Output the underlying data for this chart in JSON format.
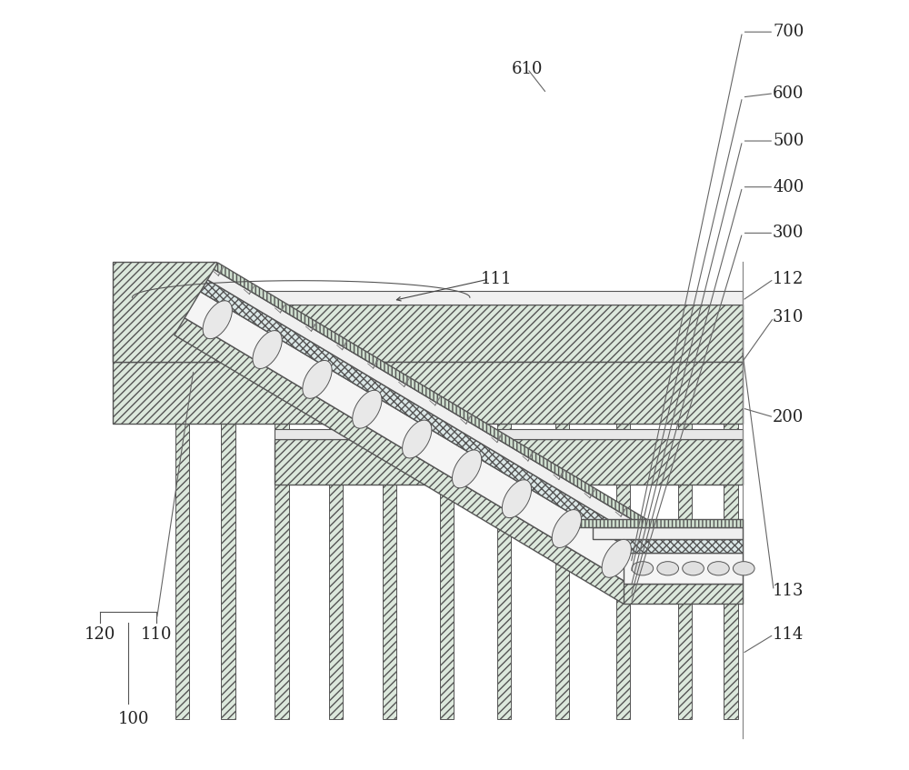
{
  "fig_width": 10.0,
  "fig_height": 8.47,
  "bg_color": "#ffffff",
  "ec": "#555555",
  "lc": "#444444",
  "label_fontsize": 13,
  "label_color": "#222222",
  "hatch_diag": "////",
  "hatch_cross": "xxxx",
  "hatch_vert": "||||",
  "fc_diag": "#dce8dc",
  "fc_cross": "#dce8e8",
  "fc_stone": "#f5f5f5",
  "fc_top": "#e8e8e8",
  "fc_vert": "#d0e0d0",
  "fc_pile": "#dce8dc",
  "fc_base": "#dce8dc"
}
